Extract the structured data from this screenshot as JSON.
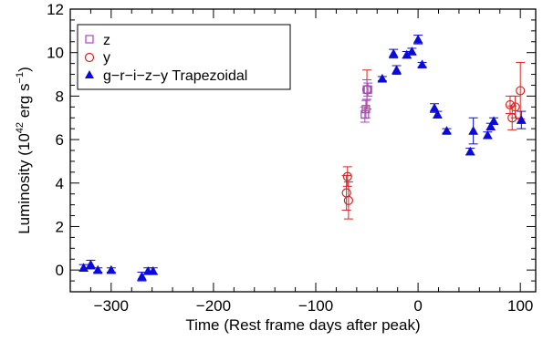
{
  "chart_data": {
    "type": "scatter",
    "title": "",
    "xlabel": "Time (Rest frame days after peak)",
    "ylabel_main": "Luminosity (10",
    "ylabel_exp": "42",
    "ylabel_tail": " erg s",
    "ylabel_exp2": "−1",
    "ylabel_close": ")",
    "xlim": [
      -340,
      115
    ],
    "ylim": [
      -1,
      12
    ],
    "xticks_major": [
      {
        "value": -300,
        "label": "−300"
      },
      {
        "value": -200,
        "label": "−200"
      },
      {
        "value": -100,
        "label": "−100"
      },
      {
        "value": 0,
        "label": "0"
      },
      {
        "value": 100,
        "label": "100"
      }
    ],
    "yticks_major": [
      {
        "value": 0,
        "label": "0"
      },
      {
        "value": 2,
        "label": "2"
      },
      {
        "value": 4,
        "label": "4"
      },
      {
        "value": 6,
        "label": "6"
      },
      {
        "value": 8,
        "label": "8"
      },
      {
        "value": 10,
        "label": "10"
      },
      {
        "value": 12,
        "label": "12"
      }
    ],
    "xtick_minor_step": 20,
    "ytick_minor_step": 0.5,
    "grid": false,
    "legend_position": "top-left",
    "series": [
      {
        "name": "z",
        "marker": "open-square",
        "color": "#b040c8",
        "points": [
          {
            "x": -52,
            "y": 7.15,
            "err": 0.35
          },
          {
            "x": -51,
            "y": 7.4,
            "err": 0.4
          },
          {
            "x": -50,
            "y": 8.3,
            "err": 0.45
          },
          {
            "x": -49,
            "y": 8.3,
            "err": 0.3
          }
        ]
      },
      {
        "name": "y",
        "marker": "open-circle",
        "color": "#e02020",
        "points": [
          {
            "x": -70,
            "y": 3.55,
            "err": 0.8
          },
          {
            "x": -69,
            "y": 4.3,
            "err": 0.45
          },
          {
            "x": -68,
            "y": 3.2,
            "err": 0.85
          },
          {
            "x": -50,
            "y": 8.3,
            "err": 0.9
          },
          {
            "x": 90,
            "y": 7.6,
            "err": 0.4
          },
          {
            "x": 92,
            "y": 7.0,
            "err": 0.55
          },
          {
            "x": 95,
            "y": 7.5,
            "err": 0.5
          },
          {
            "x": 100,
            "y": 8.25,
            "err": 1.3
          }
        ]
      },
      {
        "name": "g−r−i−z−y Trapezoidal",
        "marker": "filled-triangle",
        "color": "#0a0adc",
        "points": [
          {
            "x": -327,
            "y": 0.1,
            "err": 0.15
          },
          {
            "x": -320,
            "y": 0.25,
            "err": 0.2
          },
          {
            "x": -313,
            "y": 0.0,
            "err": 0.1
          },
          {
            "x": -300,
            "y": 0.0,
            "err": 0.1
          },
          {
            "x": -270,
            "y": -0.3,
            "err": 0.2
          },
          {
            "x": -264,
            "y": -0.05,
            "err": 0.15
          },
          {
            "x": -259,
            "y": -0.05,
            "err": 0.15
          },
          {
            "x": -35,
            "y": 8.8,
            "err": 0.1
          },
          {
            "x": -24,
            "y": 9.95,
            "err": 0.2
          },
          {
            "x": -21,
            "y": 9.2,
            "err": 0.2
          },
          {
            "x": -11,
            "y": 9.9,
            "err": 0.15
          },
          {
            "x": -6,
            "y": 10.05,
            "err": 0.15
          },
          {
            "x": 0,
            "y": 10.6,
            "err": 0.2
          },
          {
            "x": 4,
            "y": 9.45,
            "err": 0.1
          },
          {
            "x": 16,
            "y": 7.45,
            "err": 0.2
          },
          {
            "x": 19,
            "y": 7.15,
            "err": 0.15
          },
          {
            "x": 28,
            "y": 6.4,
            "err": 0.1
          },
          {
            "x": 51,
            "y": 5.45,
            "err": 0.15
          },
          {
            "x": 54,
            "y": 6.4,
            "err": 0.6
          },
          {
            "x": 68,
            "y": 6.2,
            "err": 0.15
          },
          {
            "x": 71,
            "y": 6.6,
            "err": 0.15
          },
          {
            "x": 74,
            "y": 6.85,
            "err": 0.15
          },
          {
            "x": 101,
            "y": 6.9,
            "err": 0.4
          }
        ]
      }
    ]
  }
}
